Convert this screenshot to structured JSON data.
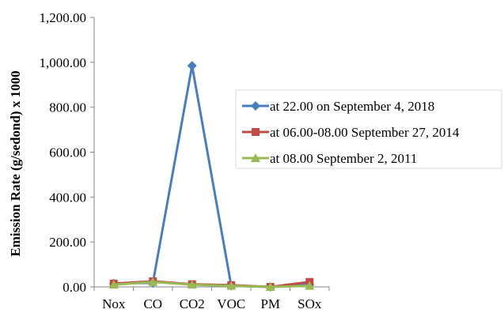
{
  "chart_data": {
    "type": "line",
    "categories": [
      "Nox",
      "CO",
      "CO2",
      "VOC",
      "PM",
      "SOx"
    ],
    "xlabel": "",
    "ylabel": "Emission Rate (g/sedond) x 1000",
    "ylim": [
      0,
      1200
    ],
    "yticks": [
      "0.00",
      "200.00",
      "400.00",
      "600.00",
      "800.00",
      "1,000.00",
      "1,200.00"
    ],
    "ytick_values": [
      0,
      200,
      400,
      600,
      800,
      1000,
      1200
    ],
    "grid": false,
    "legend_position": "right",
    "series": [
      {
        "name": "at 22.00 on September 4, 2018",
        "color": "#4a7ebb",
        "marker": "diamond",
        "values": [
          15,
          18,
          985,
          5,
          0,
          10
        ]
      },
      {
        "name": "at 06.00-08.00 September 27, 2014",
        "color": "#be4b48",
        "marker": "square",
        "values": [
          15,
          25,
          12,
          8,
          0,
          22
        ]
      },
      {
        "name": "at 08.00 September 2, 2011",
        "color": "#98b954",
        "marker": "triangle",
        "values": [
          10,
          22,
          10,
          5,
          0,
          5
        ]
      }
    ]
  }
}
